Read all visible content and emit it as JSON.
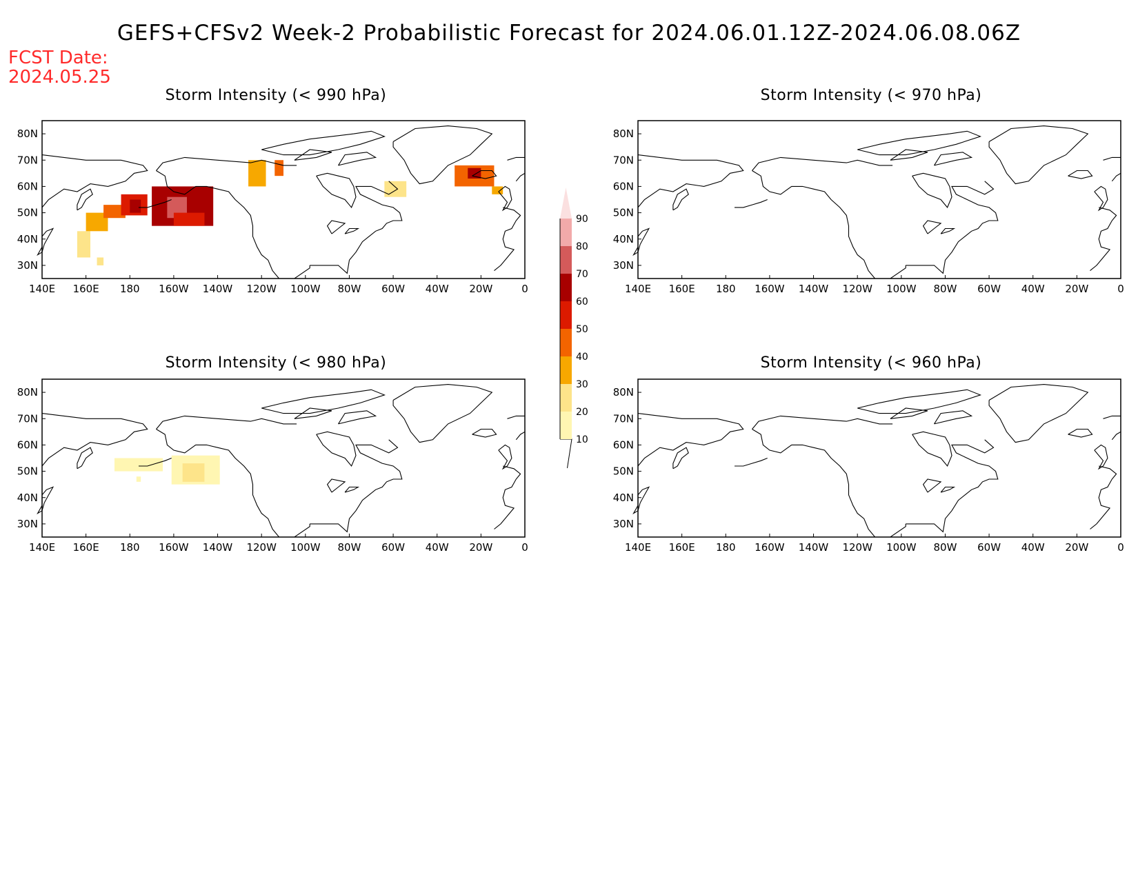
{
  "title": "GEFS+CFSv2 Week-2 Probabilistic Forecast for 2024.06.01.12Z-2024.06.08.06Z",
  "fcst_date": {
    "label": "FCST Date:",
    "value": "2024.05.25"
  },
  "panels": [
    {
      "id": "p990",
      "title": "Storm Intensity (< 990 hPa)"
    },
    {
      "id": "p970",
      "title": "Storm Intensity (< 970 hPa)"
    },
    {
      "id": "p980",
      "title": "Storm Intensity (< 980 hPa)"
    },
    {
      "id": "p960",
      "title": "Storm Intensity (< 960 hPa)"
    }
  ],
  "axes": {
    "lon_ticks": [
      "140E",
      "160E",
      "180",
      "160W",
      "140W",
      "120W",
      "100W",
      "80W",
      "60W",
      "40W",
      "20W",
      "0"
    ],
    "lat_ticks": [
      "80N",
      "70N",
      "60N",
      "50N",
      "40N",
      "30N"
    ]
  },
  "colorbar": {
    "ticks": [
      "10",
      "20",
      "30",
      "40",
      "50",
      "60",
      "70",
      "80",
      "90"
    ],
    "colors": [
      "#fff6b2",
      "#fde48a",
      "#f7a800",
      "#f36400",
      "#dc1a00",
      "#a80000",
      "#d45a5a",
      "#f2aaaa",
      "#fbe0e0"
    ]
  },
  "regions": {
    "p990": [
      {
        "lat": [
          30,
          33
        ],
        "lon": [
          165,
          168
        ],
        "p": 20
      },
      {
        "lat": [
          33,
          43
        ],
        "lon": [
          156,
          162
        ],
        "p": 20
      },
      {
        "lat": [
          43,
          50
        ],
        "lon": [
          160,
          170
        ],
        "p": 30
      },
      {
        "lat": [
          48,
          53
        ],
        "lon": [
          168,
          178
        ],
        "p": 40
      },
      {
        "lat": [
          49,
          57
        ],
        "lon": [
          176,
          188
        ],
        "p": 50
      },
      {
        "lat": [
          50,
          55
        ],
        "lon": [
          180,
          185
        ],
        "p": 60
      },
      {
        "lat": [
          45,
          60
        ],
        "lon": [
          190,
          218
        ],
        "p": 60
      },
      {
        "lat": [
          48,
          56
        ],
        "lon": [
          197,
          206
        ],
        "p": 70
      },
      {
        "lat": [
          45,
          50
        ],
        "lon": [
          200,
          214
        ],
        "p": 50
      },
      {
        "lat": [
          60,
          70
        ],
        "lon": [
          234,
          242
        ],
        "p": 30
      },
      {
        "lat": [
          64,
          70
        ],
        "lon": [
          246,
          250
        ],
        "p": 40
      },
      {
        "lat": [
          56,
          62
        ],
        "lon": [
          296,
          306
        ],
        "p": 20
      },
      {
        "lat": [
          60,
          68
        ],
        "lon": [
          328,
          346
        ],
        "p": 40
      },
      {
        "lat": [
          63,
          67
        ],
        "lon": [
          334,
          340
        ],
        "p": 60
      },
      {
        "lat": [
          57,
          60
        ],
        "lon": [
          345,
          350
        ],
        "p": 30
      }
    ],
    "p970": [],
    "p980": [
      {
        "lat": [
          50,
          55
        ],
        "lon": [
          173,
          195
        ],
        "p": 10
      },
      {
        "lat": [
          45,
          56
        ],
        "lon": [
          199,
          221
        ],
        "p": 10
      },
      {
        "lat": [
          46,
          53
        ],
        "lon": [
          204,
          214
        ],
        "p": 20
      },
      {
        "lat": [
          46,
          48
        ],
        "lon": [
          183,
          185
        ],
        "p": 10
      }
    ],
    "p960": []
  }
}
